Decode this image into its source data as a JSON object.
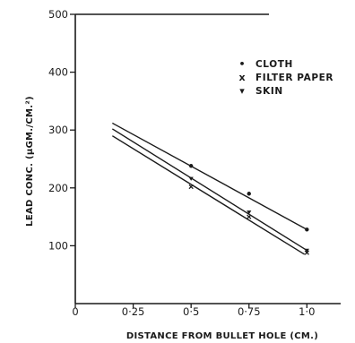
{
  "chart_data": {
    "type": "scatter",
    "xlabel": "DISTANCE FROM BULLET HOLE (CM.)",
    "ylabel": "LEAD CONC. (μGM./CM.²)",
    "xlim": [
      0,
      1.2
    ],
    "ylim": [
      0,
      500
    ],
    "x_ticks": [
      0,
      0.25,
      0.5,
      0.75,
      1.0
    ],
    "x_tick_labels": [
      "0",
      "0·25",
      "0·5",
      "0·75",
      "1·0"
    ],
    "y_ticks": [
      100,
      200,
      300,
      400,
      500
    ],
    "y_tick_labels": [
      "100",
      "200",
      "300",
      "400",
      "500"
    ],
    "legend": {
      "placement": "top-right"
    },
    "series": [
      {
        "name": "CLOTH",
        "marker_glyph": "•",
        "x": [
          0.5,
          0.75,
          1.0
        ],
        "y": [
          238,
          190,
          128
        ],
        "trend_line": {
          "x": [
            0.16,
            1.0
          ],
          "y": [
            312,
            128
          ]
        }
      },
      {
        "name": "FILTER PAPER",
        "marker_glyph": "x",
        "x": [
          0.5,
          0.75,
          1.0
        ],
        "y": [
          202,
          150,
          88
        ],
        "trend_line": {
          "x": [
            0.16,
            0.99
          ],
          "y": [
            290,
            85
          ]
        }
      },
      {
        "name": "SKIN",
        "marker_glyph": "▾",
        "x": [
          0.5,
          0.75,
          1.0
        ],
        "y": [
          216,
          158,
          92
        ],
        "trend_line": {
          "x": [
            0.16,
            1.0
          ],
          "y": [
            302,
            92
          ]
        }
      }
    ]
  }
}
